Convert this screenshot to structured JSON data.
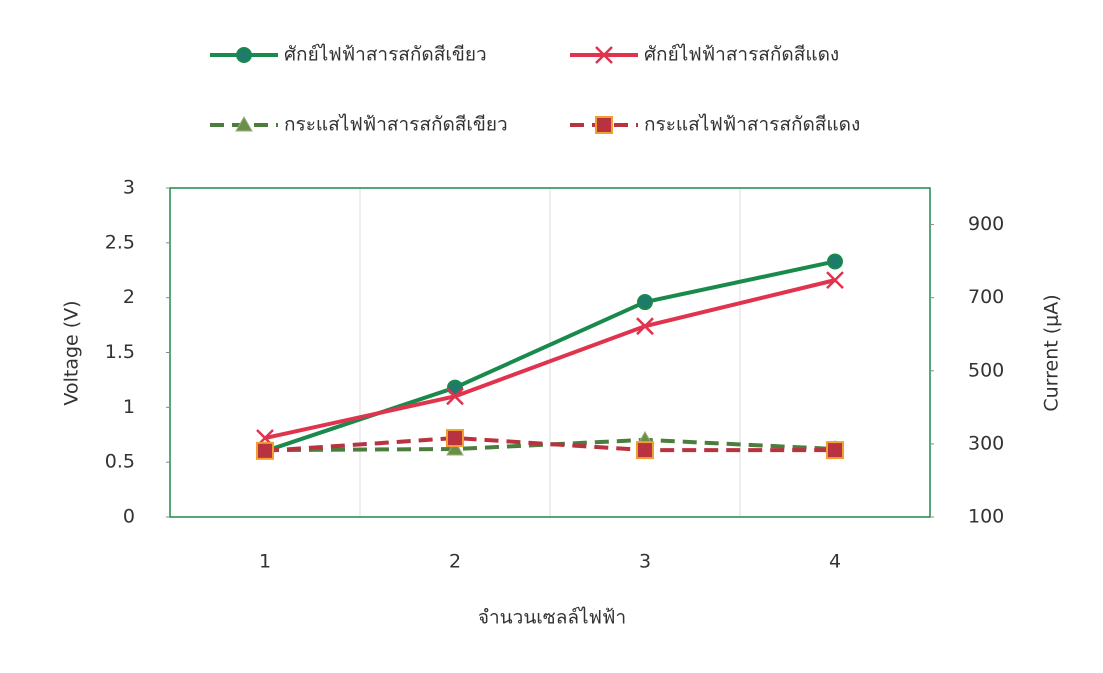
{
  "chart_data": {
    "type": "line",
    "categories": [
      "1",
      "2",
      "3",
      "4"
    ],
    "x_label": "จำนวนเซลล์ไฟฟ้า",
    "y_label": "Voltage (V)",
    "y2_label": "Current (μA)",
    "ylim": [
      0,
      3
    ],
    "yticks": [
      0,
      0.5,
      1,
      1.5,
      2,
      2.5,
      3
    ],
    "y2lim": [
      100,
      1000
    ],
    "y2ticks": [
      100,
      300,
      500,
      700,
      900
    ],
    "series": [
      {
        "name": "ศักย์ไฟฟ้าสารสกัดสีเขียว",
        "color": "#1a8a4c",
        "marker": "circle",
        "dashed": false,
        "values": [
          0.6,
          1.18,
          1.96,
          2.33
        ]
      },
      {
        "name": "ศักย์ไฟฟ้าสารสกัดสีแดง",
        "color": "#e0334d",
        "marker": "x",
        "dashed": false,
        "values": [
          0.72,
          1.1,
          1.74,
          2.16
        ]
      },
      {
        "name": "กระแสไฟฟ้าสารสกัดสีเขียว",
        "color": "#4b7d3c",
        "marker": "triangle",
        "dashed": true,
        "axis": "y2",
        "values": [
          283,
          286,
          311,
          286
        ]
      },
      {
        "name": "กระแสไฟฟ้าสารสกัดสีแดง",
        "color": "#b8323f",
        "marker": "square",
        "dashed": true,
        "axis": "y2",
        "values": [
          281,
          316,
          283,
          283
        ]
      }
    ]
  }
}
